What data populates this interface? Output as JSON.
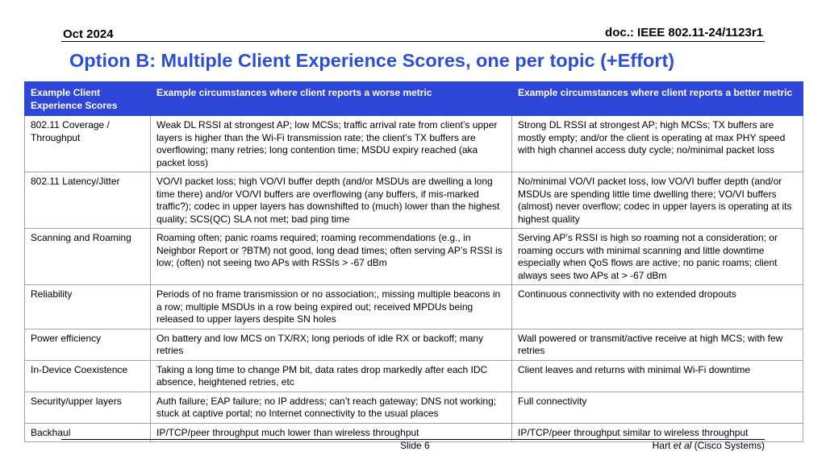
{
  "header": {
    "date": "Oct 2024",
    "doc": "doc.: IEEE 802.11-24/1123r1"
  },
  "title": "Option B: Multiple Client Experience Scores, one per topic (+Effort)",
  "table": {
    "headers": [
      "Example Client Experience Scores",
      "Example circumstances where client reports a worse metric",
      "Example circumstances where client reports a better metric"
    ],
    "rows": [
      [
        "802.11 Coverage / Throughput",
        "Weak DL RSSI at strongest AP; low MCSs; traffic arrival rate from client’s upper layers is higher than the Wi-Fi transmission rate; the client’s TX buffers are overflowing; many retries; long contention time; MSDU expiry reached (aka packet loss)",
        "Strong DL RSSI at strongest AP; high MCSs; TX buffers are mostly empty; and/or the client is operating at max PHY speed with high channel access duty cycle; no/minimal packet loss"
      ],
      [
        "802.11 Latency/Jitter",
        "VO/VI packet loss; high VO/VI buffer depth (and/or MSDUs are dwelling a long time there) and/or VO/VI buffers are overflowing (any buffers, if mis-marked traffic?); codec in upper layers has downshifted to (much) lower than the highest quality; SCS(QC) SLA not met; bad ping time",
        "No/minimal VO/VI packet loss, low VO/VI buffer depth (and/or MSDUs are spending little time dwelling there; VO/VI buffers (almost) never overflow; codec in upper layers is operating at its highest quality"
      ],
      [
        "Scanning and Roaming",
        "Roaming often; panic roams required; roaming recommendations (e.g., in Neighbor Report or ?BTM) not good, long dead times; often serving AP’s RSSI is low; (often) not seeing two APs with RSSIs > -67 dBm",
        "Serving AP’s RSSI is high so roaming not a consideration; or roaming occurs with minimal scanning and little downtime especially when QoS flows are active; no panic roams; client always sees two APs at > -67 dBm"
      ],
      [
        "Reliability",
        "Periods of no frame transmission or no association;, missing multiple beacons in a row; multiple MSDUs in a row being expired out; received MPDUs being released to upper layers despite SN holes",
        "Continuous connectivity with no extended dropouts"
      ],
      [
        "Power efficiency",
        "On battery and low MCS on TX/RX; long periods of idle RX or backoff; many retries",
        "Wall powered or transmit/active receive at high MCS; with few retries"
      ],
      [
        "In-Device Coexistence",
        "Taking a long time to change PM bit, data rates drop markedly after each IDC absence, heightened retries, etc",
        "Client leaves and returns with minimal Wi-Fi downtime"
      ],
      [
        "Security/upper layers",
        "Auth failure; EAP failure; no IP address; can’t reach gateway; DNS not working; stuck at captive portal; no Internet connectivity to the usual places",
        "Full connectivity"
      ],
      [
        "Backhaul",
        "IP/TCP/peer throughput much lower than wireless throughput",
        "IP/TCP/peer throughput similar to wireless throughput"
      ]
    ]
  },
  "footer": {
    "slide": "Slide 6",
    "author_name": "Hart",
    "author_etal": "et al",
    "author_org": "(Cisco Systems)"
  }
}
